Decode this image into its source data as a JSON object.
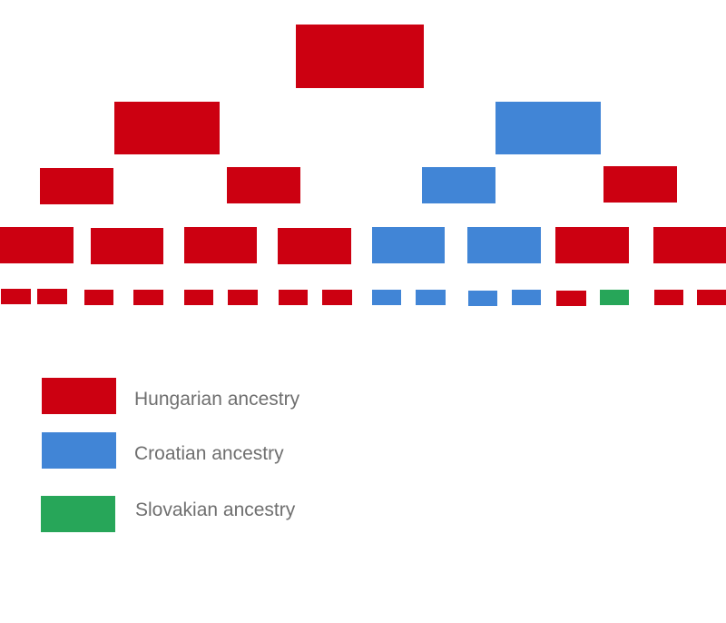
{
  "colors": {
    "hungarian": "#cc0011",
    "croatian": "#4185d6",
    "slovakian": "#27a659"
  },
  "tree": {
    "generations": [
      [
        "hungarian"
      ],
      [
        "hungarian",
        "croatian"
      ],
      [
        "hungarian",
        "hungarian",
        "croatian",
        "hungarian"
      ],
      [
        "hungarian",
        "hungarian",
        "hungarian",
        "hungarian",
        "croatian",
        "croatian",
        "hungarian",
        "hungarian"
      ],
      [
        "hungarian",
        "hungarian",
        "hungarian",
        "hungarian",
        "hungarian",
        "hungarian",
        "hungarian",
        "hungarian",
        "croatian",
        "croatian",
        "croatian",
        "croatian",
        "hungarian",
        "slovakian",
        "hungarian",
        "hungarian"
      ]
    ]
  },
  "legend": [
    {
      "key": "hungarian",
      "label": "Hungarian ancestry"
    },
    {
      "key": "croatian",
      "label": "Croatian ancestry"
    },
    {
      "key": "slovakian",
      "label": "Slovakian ancestry"
    }
  ]
}
